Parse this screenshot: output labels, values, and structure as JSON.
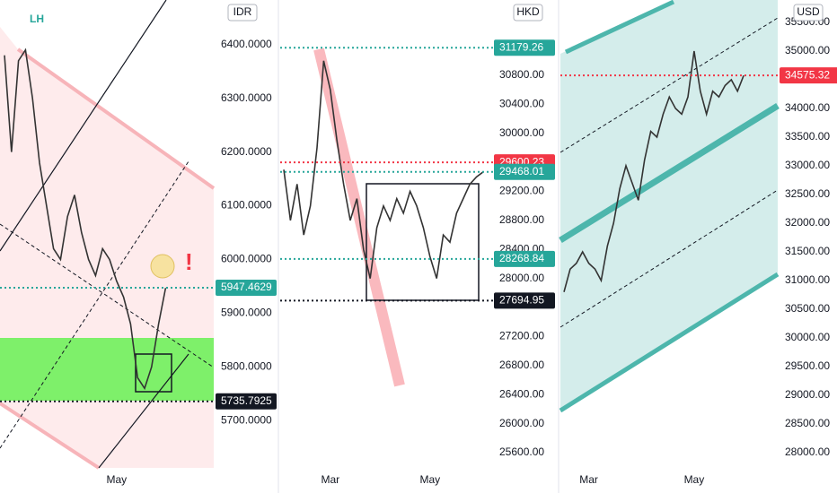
{
  "chart_data": [
    {
      "type": "line",
      "y_label": "IDR",
      "annotations": [
        "LH",
        "!"
      ],
      "categories": [
        null,
        null,
        null,
        null,
        null,
        null,
        null,
        null,
        null,
        null,
        null,
        null,
        null,
        null,
        null,
        null,
        "May",
        null,
        null,
        null,
        null,
        null,
        null,
        null
      ],
      "values": [
        6380,
        6200,
        6370,
        6390,
        6300,
        6180,
        6100,
        6020,
        6000,
        6080,
        6120,
        6050,
        6000,
        5970,
        6020,
        6000,
        5960,
        5930,
        5880,
        5780,
        5760,
        5800,
        5880,
        5947
      ],
      "color": "#333333",
      "ylim": [
        5612,
        6483
      ],
      "yticks": [
        {
          "value": 6400,
          "label": "6400.0000"
        },
        {
          "value": 6300,
          "label": "6300.0000"
        },
        {
          "value": 6200,
          "label": "6200.0000"
        },
        {
          "value": 6100,
          "label": "6100.0000"
        },
        {
          "value": 6000,
          "label": "6000.0000"
        },
        {
          "value": 5900,
          "label": "5900.0000"
        },
        {
          "value": 5800,
          "label": "5800.0000"
        },
        {
          "value": 5700,
          "label": "5700.0000"
        }
      ],
      "price_tags": [
        5947.4629,
        5735.7925
      ],
      "price_tag_colors": [
        "#26a69a",
        "#131722"
      ]
    },
    {
      "type": "line",
      "y_label": "HKD",
      "categories": [
        null,
        null,
        null,
        null,
        null,
        null,
        null,
        "Mar",
        null,
        null,
        null,
        null,
        null,
        null,
        null,
        null,
        null,
        null,
        null,
        null,
        null,
        null,
        "May",
        null,
        null,
        null,
        null,
        null,
        null,
        null,
        null
      ],
      "values": [
        29500,
        28800,
        29300,
        28600,
        29000,
        29800,
        31000,
        30600,
        29900,
        29300,
        28800,
        29100,
        28400,
        28000,
        28700,
        29000,
        28800,
        29100,
        28900,
        29200,
        29000,
        28700,
        28300,
        28000,
        28600,
        28500,
        28900,
        29100,
        29300,
        29400,
        29468
      ],
      "color": "#333333",
      "ylim": [
        25390,
        31837
      ],
      "yticks": [
        {
          "value": 30800,
          "label": "30800.00"
        },
        {
          "value": 30400,
          "label": "30400.00"
        },
        {
          "value": 30000,
          "label": "30000.00"
        },
        {
          "value": 29200,
          "label": "29200.00"
        },
        {
          "value": 28800,
          "label": "28800.00"
        },
        {
          "value": 28400,
          "label": "28400.00"
        },
        {
          "value": 28000,
          "label": "28000.00"
        },
        {
          "value": 27200,
          "label": "27200.00"
        },
        {
          "value": 26800,
          "label": "26800.00"
        },
        {
          "value": 26400,
          "label": "26400.00"
        },
        {
          "value": 26000,
          "label": "26000.00"
        },
        {
          "value": 25600,
          "label": "25600.00"
        }
      ],
      "price_tags": [
        31179.26,
        29600.23,
        29468.01,
        28268.84,
        27694.95
      ],
      "price_tag_colors": [
        "#26a69a",
        "#f23645",
        "#26a69a",
        "#26a69a",
        "#131722"
      ]
    },
    {
      "type": "line",
      "y_label": "USD",
      "categories": [
        null,
        null,
        null,
        null,
        "Mar",
        null,
        null,
        null,
        null,
        null,
        null,
        null,
        null,
        null,
        null,
        null,
        null,
        null,
        null,
        null,
        null,
        "May",
        null,
        null,
        null,
        null,
        null,
        null,
        null,
        null
      ],
      "values": [
        30800,
        31200,
        31300,
        31500,
        31300,
        31200,
        31000,
        31600,
        32000,
        32600,
        33000,
        32700,
        32400,
        33100,
        33600,
        33500,
        33900,
        34200,
        34000,
        33900,
        34200,
        35000,
        34300,
        33900,
        34300,
        34200,
        34400,
        34500,
        34300,
        34575
      ],
      "color": "#333333",
      "ylim": [
        27734,
        35890
      ],
      "yticks": [
        {
          "value": 35500,
          "label": "35500.00"
        },
        {
          "value": 35000,
          "label": "35000.00"
        },
        {
          "value": 34000,
          "label": "34000.00"
        },
        {
          "value": 33500,
          "label": "33500.00"
        },
        {
          "value": 33000,
          "label": "33000.00"
        },
        {
          "value": 32500,
          "label": "32500.00"
        },
        {
          "value": 32000,
          "label": "32000.00"
        },
        {
          "value": 31500,
          "label": "31500.00"
        },
        {
          "value": 31000,
          "label": "31000.00"
        },
        {
          "value": 30500,
          "label": "30500.00"
        },
        {
          "value": 30000,
          "label": "30000.00"
        },
        {
          "value": 29500,
          "label": "29500.00"
        },
        {
          "value": 29000,
          "label": "29000.00"
        },
        {
          "value": 28500,
          "label": "28500.00"
        },
        {
          "value": 28000,
          "label": "28000.00"
        }
      ],
      "price_tags": [
        34575.32
      ],
      "price_tag_colors": [
        "#f23645"
      ]
    }
  ]
}
